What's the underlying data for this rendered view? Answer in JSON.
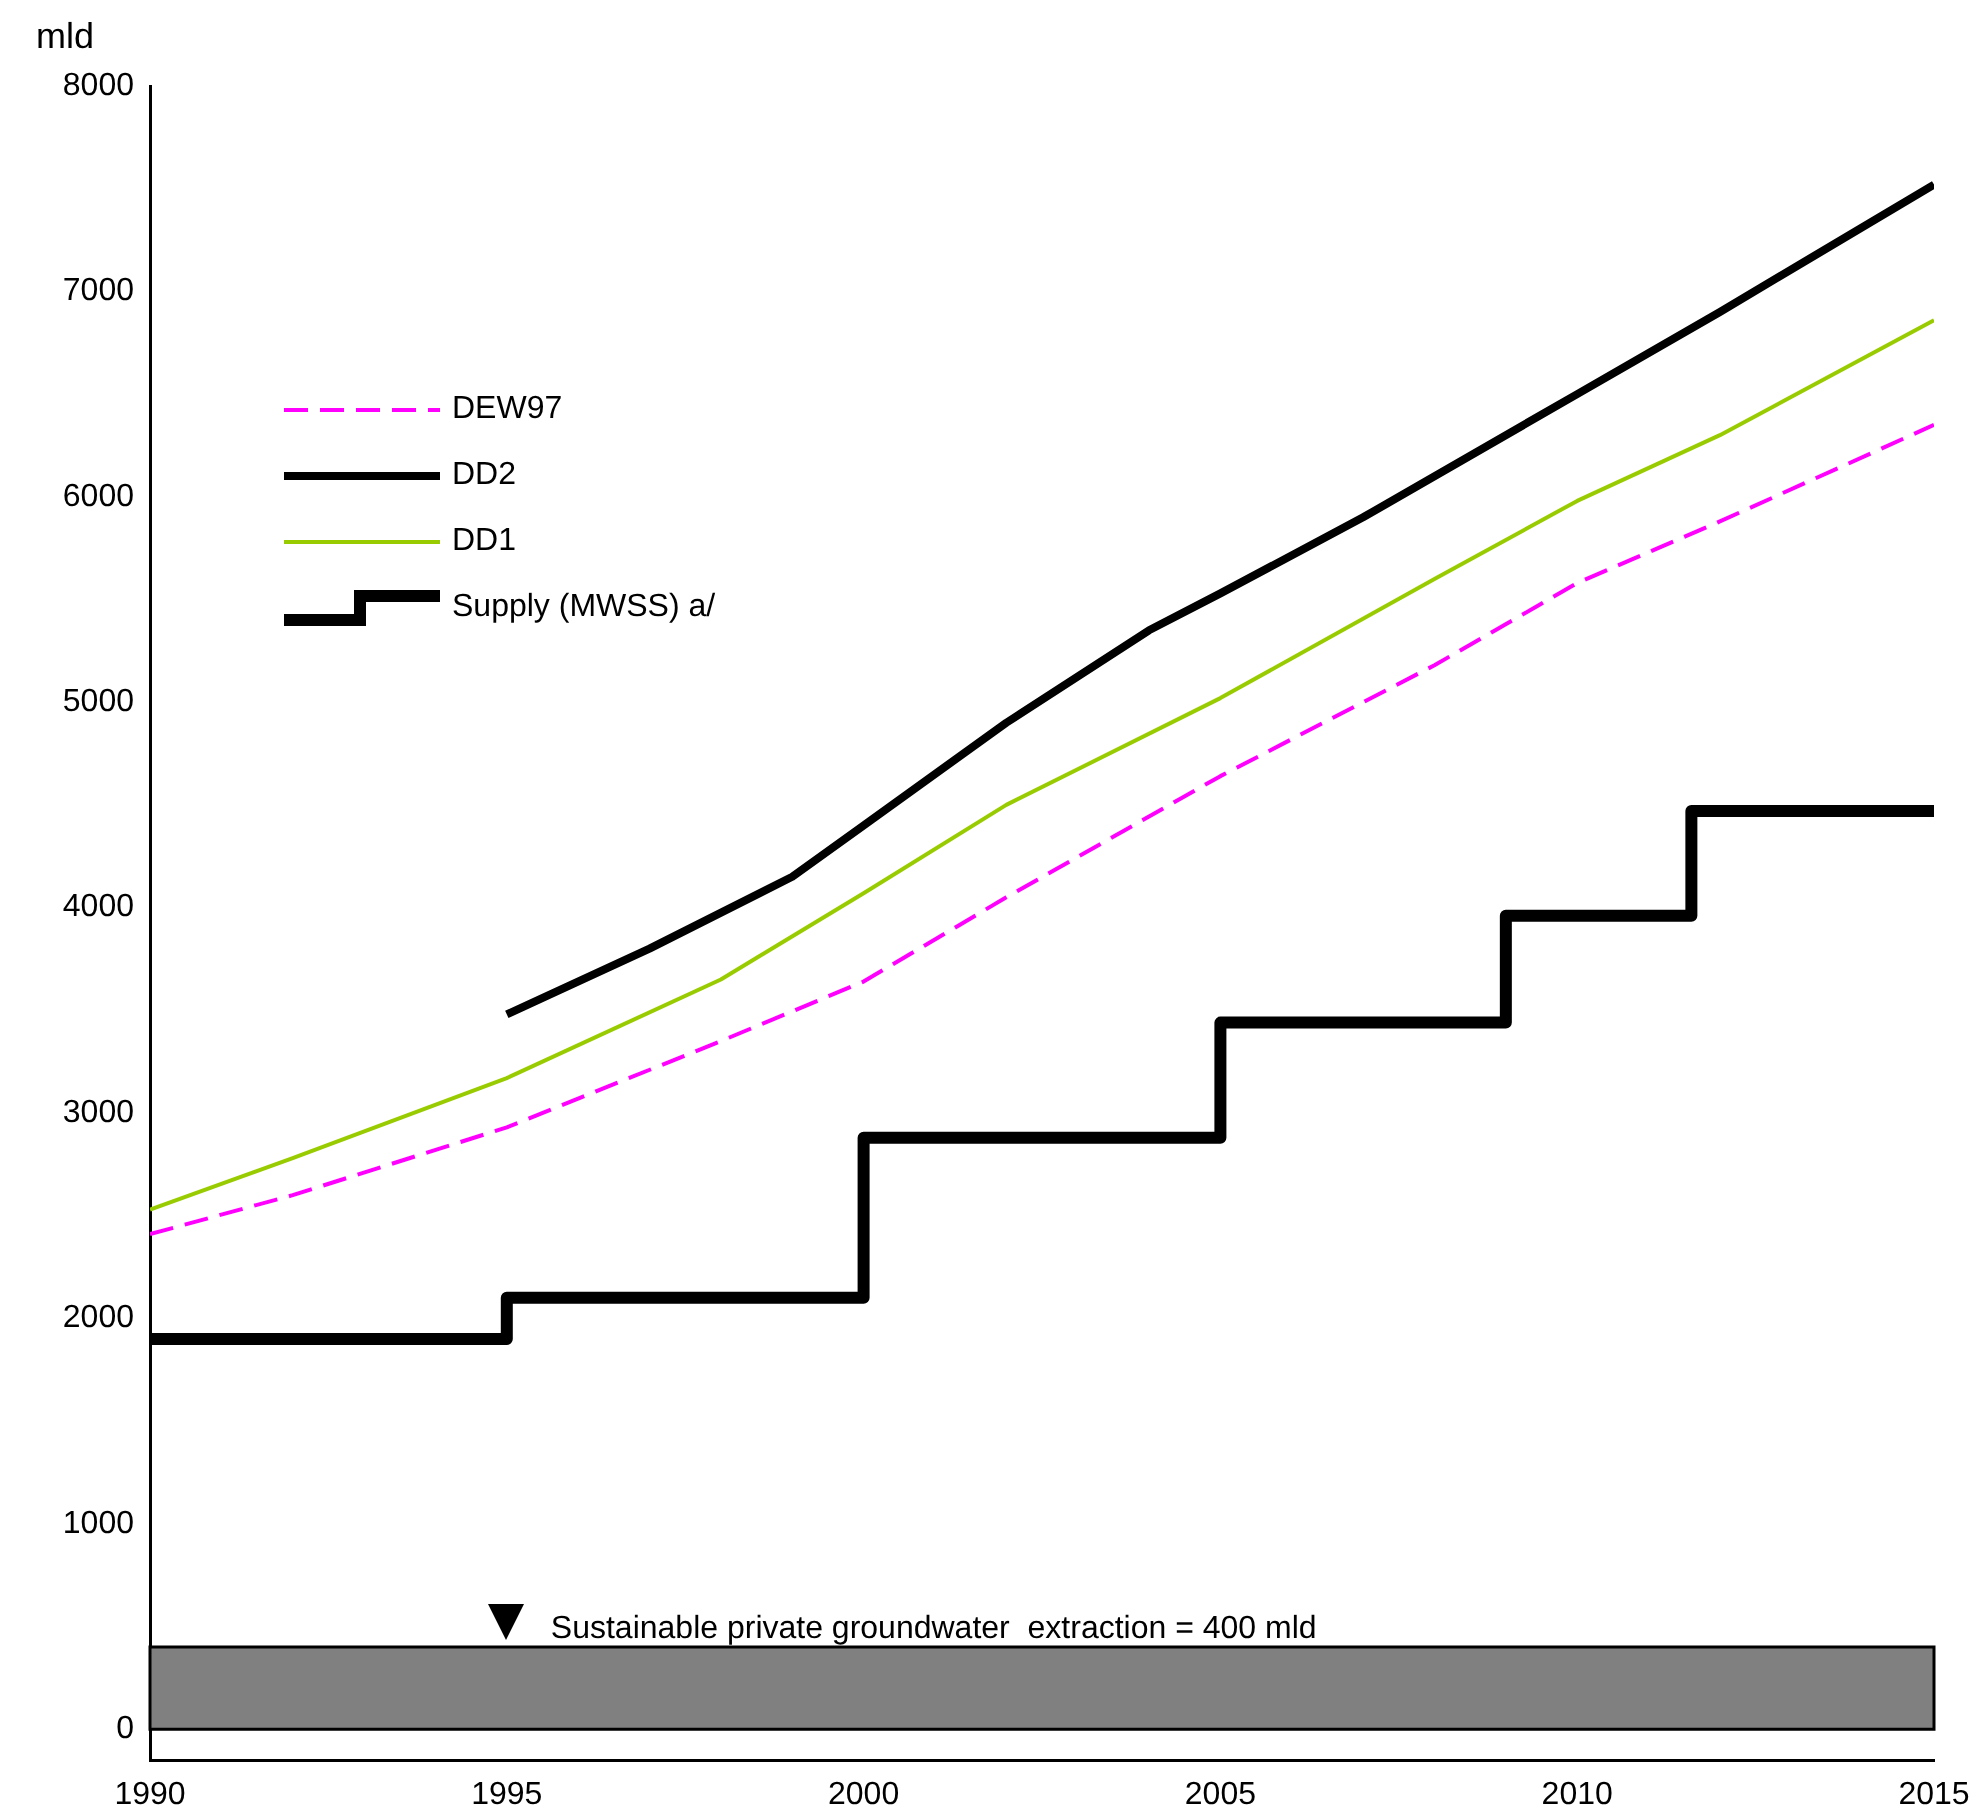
{
  "chart_data": {
    "type": "line",
    "ylabel": "mld",
    "xlim": [
      1990,
      2015
    ],
    "xticks": [
      1990,
      1995,
      2000,
      2005,
      2010,
      2015
    ],
    "ylim": [
      -150,
      8000
    ],
    "yticks": [
      0,
      1000,
      2000,
      3000,
      4000,
      5000,
      6000,
      7000,
      8000
    ],
    "grid": false,
    "legend": "top left",
    "marker": "none",
    "series": [
      {
        "name": "DEW97",
        "color": "#ff00ff",
        "line_style": "dashed",
        "x": [
          1990,
          1992,
          1995,
          1998,
          2000,
          2002,
          2005,
          2008,
          2010,
          2012,
          2015
        ],
        "values": [
          2410,
          2600,
          2930,
          3350,
          3640,
          4050,
          4640,
          5180,
          5580,
          5880,
          6350
        ]
      },
      {
        "name": "DD2",
        "color": "#000000",
        "line_style": "solid",
        "x": [
          1995,
          1997,
          1999,
          2000,
          2002,
          2004,
          2005,
          2007,
          2010,
          2012,
          2015
        ],
        "values": [
          3480,
          3800,
          4150,
          4400,
          4900,
          5350,
          5530,
          5900,
          6500,
          6900,
          7520
        ]
      },
      {
        "name": "DD1",
        "color": "#99cc00",
        "line_style": "solid",
        "x": [
          1990,
          1992,
          1995,
          1998,
          2000,
          2002,
          2005,
          2008,
          2010,
          2012,
          2015
        ],
        "values": [
          2530,
          2780,
          3170,
          3650,
          4070,
          4500,
          5020,
          5600,
          5980,
          6300,
          6860
        ]
      },
      {
        "name": "Supply (MWSS) a/",
        "type": "step",
        "color": "#000000",
        "line_style": "solid",
        "x": [
          1990,
          1995,
          2000,
          2005,
          2009,
          2011.6,
          2015
        ],
        "values": [
          1900,
          2100,
          2880,
          3440,
          3960,
          4470,
          4470
        ]
      }
    ],
    "bands": [
      {
        "axis": "y",
        "from": 0,
        "to": 400,
        "label": "Sustainable private groundwater  extraction = 400 mld",
        "color": "#808080"
      }
    ]
  }
}
